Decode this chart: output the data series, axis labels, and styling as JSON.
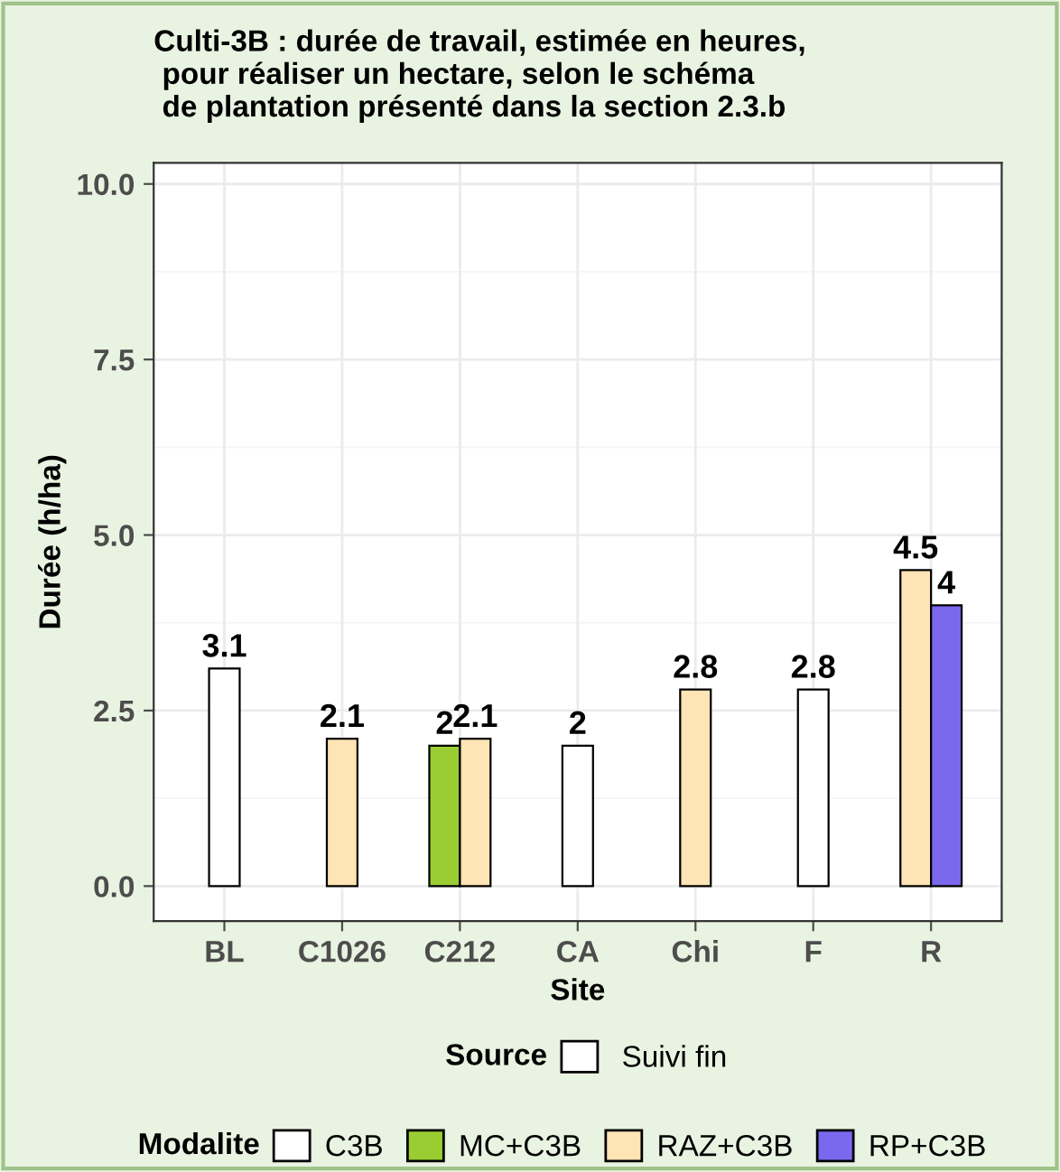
{
  "chart_data": {
    "type": "bar",
    "title": "Culti-3B : durée de travail, estimée en heures,\n pour réaliser un hectare, selon le schéma\n de plantation présenté dans la section 2.3.b",
    "xlabel": "Site",
    "ylabel": "Durée (h/ha)",
    "legend_title": "Modalite",
    "categories": [
      "BL",
      "C1026",
      "C212",
      "CA",
      "Chi",
      "F",
      "R"
    ],
    "series": [
      {
        "name": "C3B",
        "color": "#ffffff",
        "values": [
          3.1,
          null,
          null,
          2,
          null,
          2.8,
          null
        ]
      },
      {
        "name": "MC+C3B",
        "color": "#9acd32",
        "values": [
          null,
          null,
          2,
          null,
          null,
          null,
          null
        ]
      },
      {
        "name": "RAZ+C3B",
        "color": "#ffe4b5",
        "values": [
          null,
          2.1,
          2.1,
          null,
          2.8,
          null,
          4.5
        ]
      },
      {
        "name": "RP+C3B",
        "color": "#7b68ee",
        "values": [
          null,
          null,
          null,
          null,
          null,
          null,
          4
        ]
      }
    ],
    "ylim": [
      -0.5,
      10.3
    ],
    "yticks": [
      {
        "value": 0,
        "label": "0.0"
      },
      {
        "value": 2.5,
        "label": "2.5"
      },
      {
        "value": 5,
        "label": "5.0"
      },
      {
        "value": 7.5,
        "label": "7.5"
      },
      {
        "value": 10,
        "label": "10.0"
      }
    ],
    "grid": true,
    "legend": "bottom",
    "data_labels": true,
    "annotations": [
      "Source",
      "Suivi fin"
    ]
  }
}
